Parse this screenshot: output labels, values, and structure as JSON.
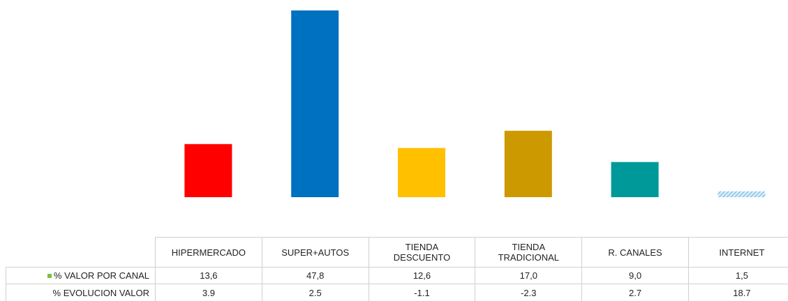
{
  "chart_data": {
    "type": "bar",
    "categories": [
      "HIPERMERCADO",
      "SUPER+AUTOS",
      "TIENDA\nDESCUENTO",
      "TIENDA\nTRADICIONAL",
      "R. CANALES",
      "INTERNET"
    ],
    "series": [
      {
        "name": "% VALOR POR CANAL",
        "color": "#7ac143",
        "colors": [
          "#ff0000",
          "#0070c0",
          "#ffc000",
          "#cc9900",
          "#009999",
          "#8fc8e8"
        ],
        "values": [
          13.6,
          47.8,
          12.6,
          17.0,
          9.0,
          1.5
        ],
        "value_labels": [
          "13,6",
          "47,8",
          "12,6",
          "17,0",
          "9,0",
          "1,5"
        ]
      },
      {
        "name": "% EVOLUCION VALOR",
        "values": [
          3.9,
          2.5,
          -1.1,
          -2.3,
          2.7,
          18.7
        ],
        "value_labels": [
          "3.9",
          "2.5",
          "-1.1",
          "-2.3",
          "2.7",
          "18.7"
        ]
      }
    ]
  }
}
